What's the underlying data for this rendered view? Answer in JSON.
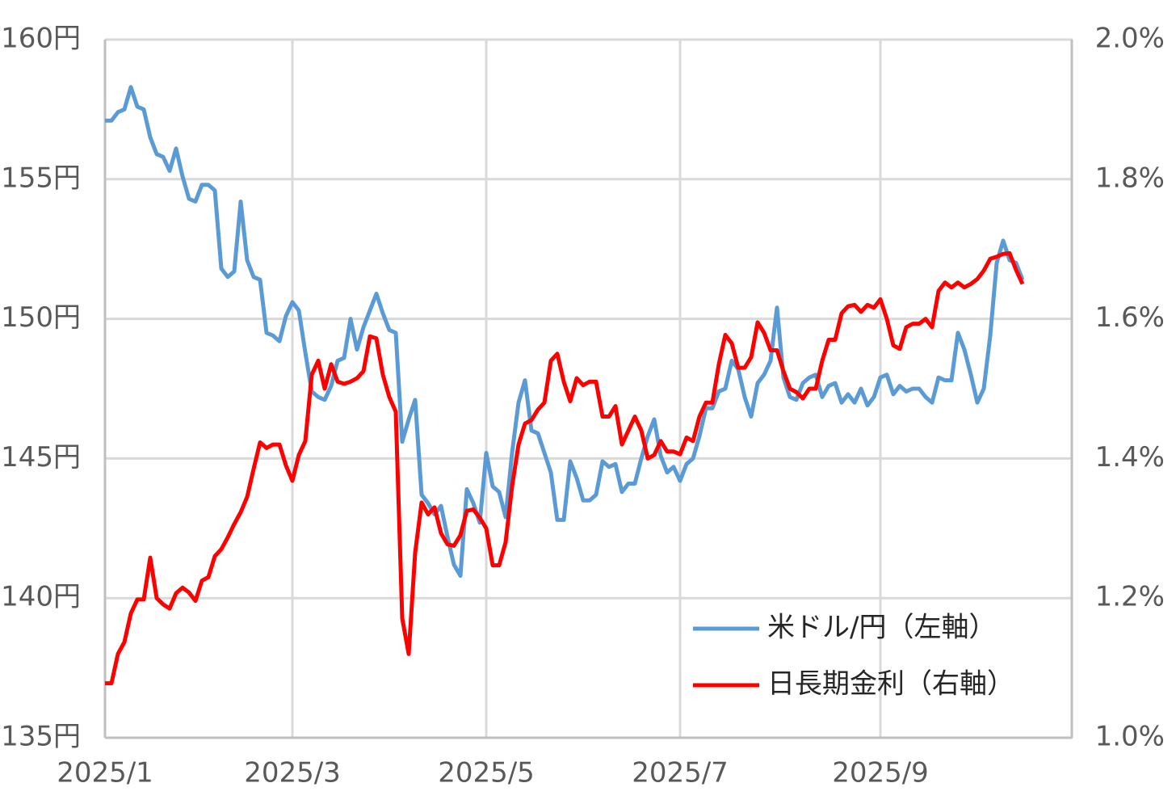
{
  "chart_data": {
    "type": "line",
    "categories": [
      "2025/1",
      null,
      null,
      null,
      null,
      null,
      null,
      null,
      null,
      null,
      null,
      null,
      null,
      null,
      null,
      null,
      null,
      null,
      null,
      null,
      null,
      null,
      null,
      null,
      null,
      null,
      null,
      null,
      null,
      "2025/3",
      null,
      null,
      null,
      null,
      null,
      null,
      null,
      null,
      null,
      null,
      null,
      null,
      null,
      null,
      null,
      null,
      null,
      null,
      null,
      null,
      null,
      null,
      null,
      null,
      null,
      null,
      null,
      null,
      null,
      "2025/5",
      null,
      null,
      null,
      null,
      null,
      null,
      null,
      null,
      null,
      null,
      null,
      null,
      null,
      null,
      null,
      null,
      null,
      null,
      null,
      null,
      null,
      null,
      null,
      null,
      null,
      null,
      null,
      null,
      null,
      "2025/7",
      null,
      null,
      null,
      null,
      null,
      null,
      null,
      null,
      null,
      null,
      null,
      null,
      null,
      null,
      null,
      null,
      null,
      null,
      null,
      null,
      null,
      null,
      null,
      null,
      null,
      null,
      null,
      null,
      null,
      null,
      "2025/9",
      null,
      null,
      null,
      null,
      null,
      null,
      null,
      null,
      null,
      null,
      null,
      null,
      null,
      null,
      null,
      null,
      null,
      null,
      null,
      null,
      null,
      null
    ],
    "series": [
      {
        "name": "米ドル/円（左軸）",
        "color": "#5b9bd5",
        "values": [
          157.1,
          157.1,
          157.4,
          157.5,
          158.3,
          157.6,
          157.5,
          156.5,
          155.9,
          155.8,
          155.3,
          156.1,
          155.1,
          154.3,
          154.2,
          154.8,
          154.8,
          154.6,
          151.8,
          151.5,
          151.7,
          154.2,
          152.1,
          151.5,
          151.4,
          149.5,
          149.4,
          149.2,
          150.1,
          150.6,
          150.3,
          148.8,
          147.4,
          147.2,
          147.1,
          147.6,
          148.5,
          148.6,
          150.0,
          148.9,
          149.7,
          150.3,
          150.9,
          150.2,
          149.6,
          149.5,
          145.6,
          146.4,
          147.1,
          143.7,
          143.4,
          143.0,
          143.3,
          142.2,
          141.2,
          140.8,
          143.9,
          143.4,
          142.7,
          145.2,
          144.0,
          143.8,
          142.9,
          145.2,
          147.0,
          147.8,
          146.0,
          145.9,
          145.2,
          144.5,
          142.8,
          142.8,
          144.9,
          144.3,
          143.5,
          143.5,
          143.7,
          144.9,
          144.7,
          144.8,
          143.8,
          144.1,
          144.1,
          145.0,
          145.8,
          146.4,
          145.1,
          144.5,
          144.7,
          144.2,
          144.8,
          145.0,
          145.8,
          146.8,
          146.8,
          147.4,
          147.5,
          148.5,
          148.2,
          147.2,
          146.5,
          147.7,
          148.0,
          148.5,
          150.4,
          147.9,
          147.2,
          147.1,
          147.7,
          147.9,
          148.0,
          147.2,
          147.6,
          147.7,
          147.0,
          147.3,
          147.0,
          147.5,
          146.9,
          147.2,
          147.9,
          148.0,
          147.3,
          147.6,
          147.4,
          147.5,
          147.5,
          147.2,
          147.0,
          147.9,
          147.8,
          147.8,
          149.5,
          148.9,
          148.0,
          147.0,
          147.5,
          149.4,
          152.0,
          152.8,
          152.1,
          152.0,
          151.4
        ]
      },
      {
        "name": "日長期金利（右軸）",
        "color": "#ff0000",
        "axis": "y2",
        "values": [
          1.078,
          1.078,
          1.12,
          1.137,
          1.178,
          1.198,
          1.198,
          1.258,
          1.2,
          1.191,
          1.185,
          1.207,
          1.215,
          1.208,
          1.196,
          1.225,
          1.23,
          1.26,
          1.27,
          1.287,
          1.306,
          1.323,
          1.345,
          1.385,
          1.423,
          1.415,
          1.42,
          1.42,
          1.39,
          1.368,
          1.405,
          1.425,
          1.52,
          1.54,
          1.5,
          1.535,
          1.51,
          1.507,
          1.51,
          1.515,
          1.525,
          1.575,
          1.572,
          1.52,
          1.488,
          1.467,
          1.171,
          1.12,
          1.265,
          1.337,
          1.32,
          1.33,
          1.293,
          1.277,
          1.275,
          1.29,
          1.325,
          1.327,
          1.315,
          1.3,
          1.247,
          1.247,
          1.28,
          1.36,
          1.42,
          1.45,
          1.455,
          1.47,
          1.48,
          1.54,
          1.55,
          1.51,
          1.482,
          1.515,
          1.505,
          1.51,
          1.51,
          1.46,
          1.46,
          1.475,
          1.42,
          1.44,
          1.46,
          1.44,
          1.4,
          1.405,
          1.425,
          1.41,
          1.41,
          1.406,
          1.43,
          1.425,
          1.46,
          1.48,
          1.48,
          1.535,
          1.577,
          1.565,
          1.53,
          1.53,
          1.545,
          1.595,
          1.58,
          1.555,
          1.555,
          1.525,
          1.5,
          1.495,
          1.486,
          1.5,
          1.5,
          1.54,
          1.57,
          1.57,
          1.608,
          1.618,
          1.62,
          1.61,
          1.62,
          1.616,
          1.628,
          1.6,
          1.562,
          1.557,
          1.588,
          1.593,
          1.593,
          1.6,
          1.588,
          1.64,
          1.652,
          1.645,
          1.652,
          1.645,
          1.65,
          1.657,
          1.669,
          1.686,
          1.689,
          1.693,
          1.694,
          1.67,
          1.65
        ]
      }
    ],
    "ylim": [
      135,
      160
    ],
    "yticks": [
      {
        "value": 135,
        "label": "135円"
      },
      {
        "value": 140,
        "label": "140円"
      },
      {
        "value": 145,
        "label": "145円"
      },
      {
        "value": 150,
        "label": "150円"
      },
      {
        "value": 155,
        "label": "155円"
      },
      {
        "value": 160,
        "label": "160円"
      }
    ],
    "y2lim": [
      1.0,
      2.0
    ],
    "y2ticks": [
      {
        "value": 1.0,
        "label": "1.0%"
      },
      {
        "value": 1.2,
        "label": "1.2%"
      },
      {
        "value": 1.4,
        "label": "1.4%"
      },
      {
        "value": 1.6,
        "label": "1.6%"
      },
      {
        "value": 1.8,
        "label": "1.8%"
      },
      {
        "value": 2.0,
        "label": "2.0%"
      }
    ],
    "grid": true,
    "legend": "lower right"
  }
}
